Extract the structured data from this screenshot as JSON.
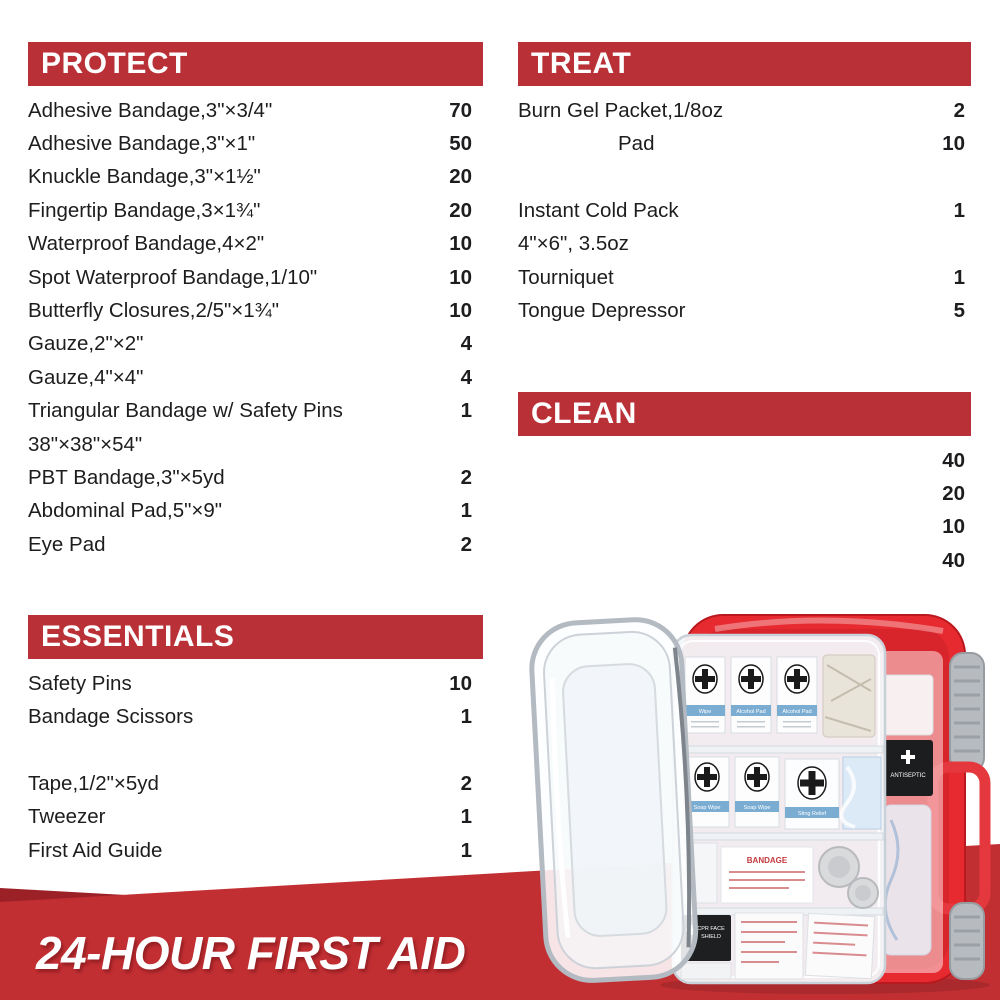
{
  "theme": {
    "accent_red": "#b93137",
    "band_red": "#c22f33",
    "band_red_dark": "#9c2127",
    "case_red": "#e62a30",
    "text_dark": "#1d1d1f"
  },
  "sections": {
    "protect": {
      "title": "PROTECT",
      "items": [
        {
          "label": "Adhesive Bandage,3\"×3/4\"",
          "qty": "70"
        },
        {
          "label": "Adhesive Bandage,3\"×1\"",
          "qty": "50"
        },
        {
          "label": "Knuckle Bandage,3\"×1½\"",
          "qty": "20"
        },
        {
          "label": "Fingertip Bandage,3×1¾\"",
          "qty": "20"
        },
        {
          "label": "Waterproof Bandage,4×2\"",
          "qty": "10"
        },
        {
          "label": "Spot Waterproof Bandage,1/10\"",
          "qty": "10"
        },
        {
          "label": "Butterfly Closures,2/5\"×1¾\"",
          "qty": "10"
        },
        {
          "label": "Gauze,2\"×2\"",
          "qty": "4"
        },
        {
          "label": "Gauze,4\"×4\"",
          "qty": "4"
        },
        {
          "label": "Triangular Bandage w/ Safety Pins",
          "qty": "1"
        },
        {
          "label": "38\"×38\"×54\"",
          "qty": ""
        },
        {
          "label": "PBT Bandage,3\"×5yd",
          "qty": "2"
        },
        {
          "label": "Abdominal Pad,5\"×9\"",
          "qty": "1"
        },
        {
          "label": "Eye Pad",
          "qty": "2"
        }
      ]
    },
    "treat": {
      "title": "TREAT",
      "items": [
        {
          "label": "Burn Gel Packet,1/8oz",
          "qty": "2"
        },
        {
          "label": "Pad",
          "qty": "10",
          "indent": true
        },
        {
          "label": "",
          "qty": "",
          "spacer": true
        },
        {
          "label": "Instant Cold Pack",
          "qty": "1"
        },
        {
          "label": "4\"×6\", 3.5oz",
          "qty": ""
        },
        {
          "label": "Tourniquet",
          "qty": "1"
        },
        {
          "label": "Tongue Depressor",
          "qty": "5"
        }
      ]
    },
    "clean": {
      "title": "CLEAN",
      "items": [
        {
          "label": "",
          "qty": "40"
        },
        {
          "label": "",
          "qty": "20"
        },
        {
          "label": "",
          "qty": "10"
        },
        {
          "label": "",
          "qty": "40"
        }
      ]
    },
    "essentials": {
      "title": "ESSENTIALS",
      "items": [
        {
          "label": "Safety Pins",
          "qty": "10"
        },
        {
          "label": "Bandage Scissors",
          "qty": "1"
        },
        {
          "label": "",
          "qty": "",
          "spacer": true
        },
        {
          "label": "Tape,1/2\"×5yd",
          "qty": "2"
        },
        {
          "label": "Tweezer",
          "qty": "1"
        },
        {
          "label": "First Aid Guide",
          "qty": "1"
        }
      ]
    }
  },
  "banner": {
    "text": "24-HOUR FIRST AID"
  },
  "photo": {
    "packets_row1": [
      "Wipe",
      "Alcohol Pad",
      "Alcohol Pad"
    ],
    "packets_row2": [
      "Soap Wipe",
      "Soap Wipe",
      "Sting Relief"
    ],
    "bandage_box_label": "BANDAGE",
    "cpr_label_line1": "CPR FACE",
    "cpr_label_line2": "SHIELD",
    "side_label": "ANTISEPTIC"
  }
}
